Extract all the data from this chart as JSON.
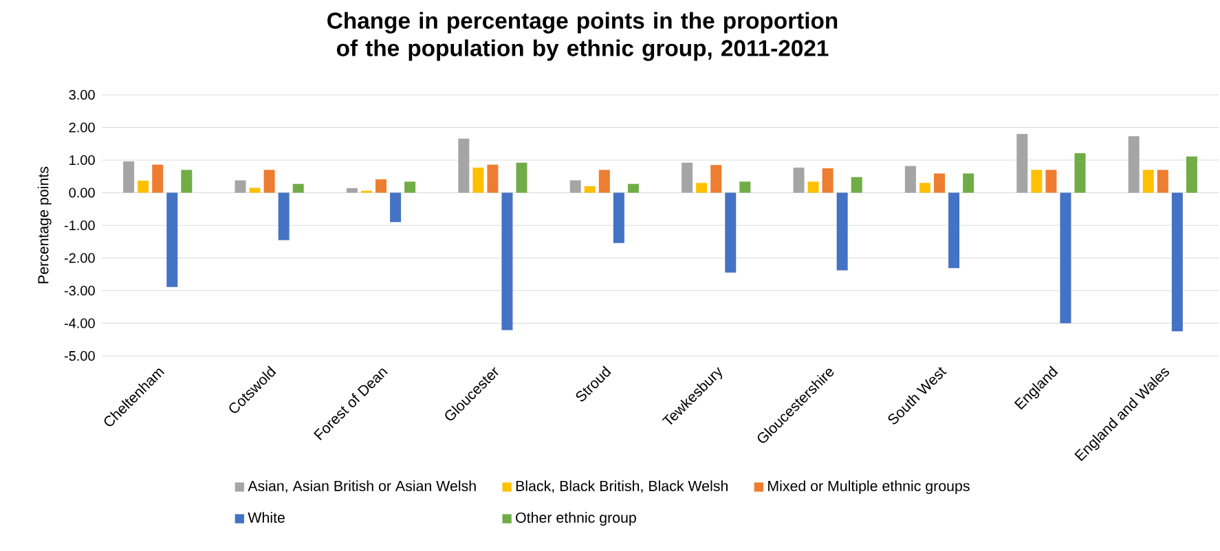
{
  "chart_data": {
    "type": "bar",
    "title": "Change in percentage points in the proportion of the population by ethnic group, 2011-2021",
    "ylabel": "Percentage points",
    "categories": [
      "Cheltenham",
      "Cotswold",
      "Forest of Dean",
      "Gloucester",
      "Stroud",
      "Tewkesbury",
      "Gloucestershire",
      "South West",
      "England",
      "England and Wales"
    ],
    "series": [
      {
        "name": "Asian, Asian British or Asian Welsh",
        "color": "#a5a5a5",
        "values": [
          0.96,
          0.38,
          0.14,
          1.66,
          0.38,
          0.92,
          0.77,
          0.82,
          1.8,
          1.73
        ]
      },
      {
        "name": "Black, Black British, Black Welsh",
        "color": "#ffc000",
        "values": [
          0.37,
          0.15,
          0.06,
          0.77,
          0.2,
          0.3,
          0.34,
          0.3,
          0.7,
          0.7
        ]
      },
      {
        "name": "Mixed or Multiple ethnic groups",
        "color": "#ed7d31",
        "values": [
          0.86,
          0.7,
          0.41,
          0.86,
          0.7,
          0.85,
          0.75,
          0.59,
          0.7,
          0.7
        ]
      },
      {
        "name": "White",
        "color": "#4472c4",
        "values": [
          -2.89,
          -1.45,
          -0.9,
          -4.21,
          -1.54,
          -2.45,
          -2.38,
          -2.31,
          -4.0,
          -4.25
        ]
      },
      {
        "name": "Other ethnic group",
        "color": "#70ad47",
        "values": [
          0.7,
          0.27,
          0.34,
          0.92,
          0.27,
          0.34,
          0.48,
          0.59,
          1.21,
          1.11
        ]
      }
    ],
    "ylim": [
      -5,
      3
    ],
    "yticks": [
      {
        "value": -5,
        "label": "-5.00"
      },
      {
        "value": -4,
        "label": "-4.00"
      },
      {
        "value": -3,
        "label": "-3.00"
      },
      {
        "value": -2,
        "label": "-2.00"
      },
      {
        "value": -1,
        "label": "-1.00"
      },
      {
        "value": 0,
        "label": "0.00"
      },
      {
        "value": 1,
        "label": "1.00"
      },
      {
        "value": 2,
        "label": "2.00"
      },
      {
        "value": 3,
        "label": "3.00"
      }
    ],
    "grid": "y",
    "legend": "bottom"
  }
}
